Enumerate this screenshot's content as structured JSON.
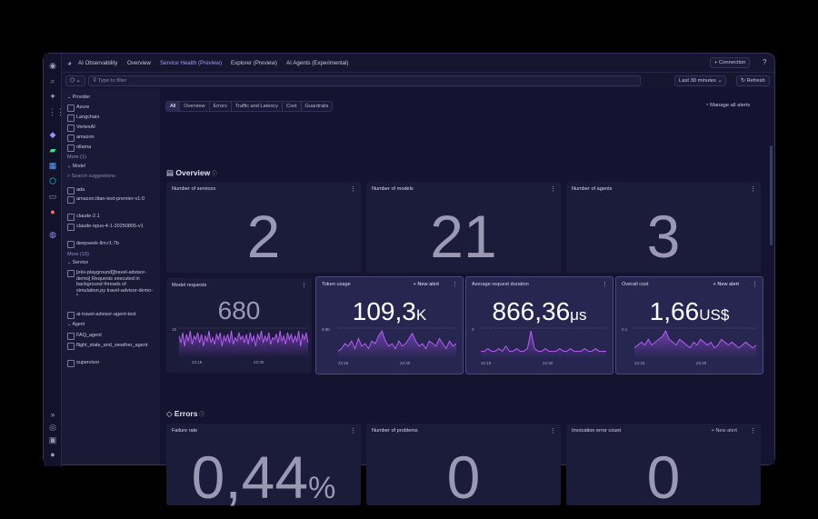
{
  "app": {
    "name": "AI Observability"
  },
  "nav": [
    {
      "label": "Overview"
    },
    {
      "label": "Service Health (Preview)"
    },
    {
      "label": "Explorer (Preview)"
    },
    {
      "label": "AI Agents (Experimental)"
    }
  ],
  "top_actions": {
    "connection": "Connection"
  },
  "filter": {
    "placeholder": "Type to filter",
    "timeframe": "Last 30 minutes",
    "refresh": "Refresh"
  },
  "sidebar": {
    "provider": {
      "title": "Provider",
      "items": [
        "Azure",
        "Langchain",
        "VertexAI",
        "amazon",
        "ollama"
      ],
      "more": "More (1)"
    },
    "model": {
      "title": "Model",
      "search_placeholder": "Search suggestions",
      "items": [
        "ada",
        "amazon.titan-text-premier-v1:0",
        "claude-2.1",
        "claude-opus-4-1-20250805-v1",
        "deepseek-llm:r1:7b"
      ],
      "more": "More (15)"
    },
    "service": {
      "title": "Service",
      "items": [
        "[eks-playground][travel-advisor-demo] Requests executed in background threads of simulation.py travel-advisor-demo-*",
        "ai-travel-advisor-agent-test"
      ]
    },
    "agent": {
      "title": "Agent",
      "items": [
        "FAQ_agent",
        "flight_state_and_weather_agent",
        "supervisor"
      ]
    }
  },
  "tabs": [
    "All",
    "Overview",
    "Errors",
    "Traffic and Latency",
    "Cost",
    "Guardrails"
  ],
  "manage_alerts": "Manage all alerts",
  "overview": {
    "title": "Overview",
    "tiles": [
      {
        "title": "Number of services",
        "value": "2"
      },
      {
        "title": "Number of models",
        "value": "21"
      },
      {
        "title": "Number of agents",
        "value": "3"
      }
    ],
    "charts": [
      {
        "title": "Model requests",
        "value": "680",
        "unit": "",
        "ref": "15",
        "t1": "22:15",
        "t2": "22:30",
        "new_alert": "",
        "series": [
          12,
          8,
          14,
          6,
          13,
          9,
          15,
          7,
          12,
          10,
          14,
          8,
          13,
          6,
          12,
          9,
          15,
          8,
          11,
          7,
          13,
          10,
          14,
          6,
          12,
          9,
          13,
          8,
          15,
          7,
          11,
          9,
          14,
          10,
          12,
          8,
          13,
          7,
          14,
          9,
          12,
          6,
          13,
          10,
          15,
          8,
          12,
          9,
          14,
          7,
          11,
          10,
          13,
          8,
          15,
          9,
          12,
          7,
          14,
          10,
          13,
          8,
          12,
          9,
          15,
          6,
          13,
          10,
          14,
          8
        ]
      },
      {
        "title": "Token usage",
        "value": "109,3",
        "unit": "K",
        "ref": "9,8K",
        "t1": "22:15",
        "t2": "22:30",
        "new_alert": "New alert",
        "series": [
          2,
          3,
          5,
          4,
          6,
          3,
          7,
          4,
          5,
          3,
          6,
          5,
          8,
          10,
          6,
          4,
          5,
          3,
          6,
          4,
          5,
          7,
          9,
          6,
          4,
          5,
          3,
          6,
          5,
          4,
          7,
          5,
          3,
          6,
          4,
          5
        ]
      },
      {
        "title": "Average request duration",
        "value": "866,36",
        "unit": "μs",
        "ref": "3",
        "t1": "22:15",
        "t2": "22:30",
        "new_alert": "",
        "series": [
          2,
          2,
          3,
          2,
          2,
          3,
          2,
          4,
          2,
          2,
          3,
          2,
          2,
          3,
          10,
          3,
          2,
          2,
          3,
          2,
          2,
          2,
          3,
          2,
          2,
          3,
          2,
          2,
          2,
          3,
          2,
          2,
          3,
          2,
          2,
          2
        ]
      },
      {
        "title": "Overall cost",
        "value": "1,66",
        "unit": "US$",
        "ref": "0,1",
        "t1": "22:15",
        "t2": "22:30",
        "new_alert": "New alert",
        "series": [
          3,
          4,
          5,
          4,
          6,
          4,
          5,
          6,
          7,
          9,
          6,
          5,
          4,
          6,
          5,
          4,
          3,
          5,
          4,
          6,
          5,
          4,
          5,
          3,
          4,
          6,
          5,
          4,
          5,
          4,
          3,
          4,
          5,
          4,
          3,
          4
        ]
      }
    ]
  },
  "errors": {
    "title": "Errors",
    "tiles": [
      {
        "title": "Failure rate",
        "value": "0,44",
        "unit": "%",
        "new_alert": ""
      },
      {
        "title": "Number of problems",
        "value": "0",
        "unit": "",
        "new_alert": ""
      },
      {
        "title": "Invocation error count",
        "value": "0",
        "unit": "",
        "new_alert": "New alert"
      }
    ]
  },
  "colors": {
    "accent": "#a855f7",
    "line": "#c061ff",
    "bg": "#161630"
  }
}
